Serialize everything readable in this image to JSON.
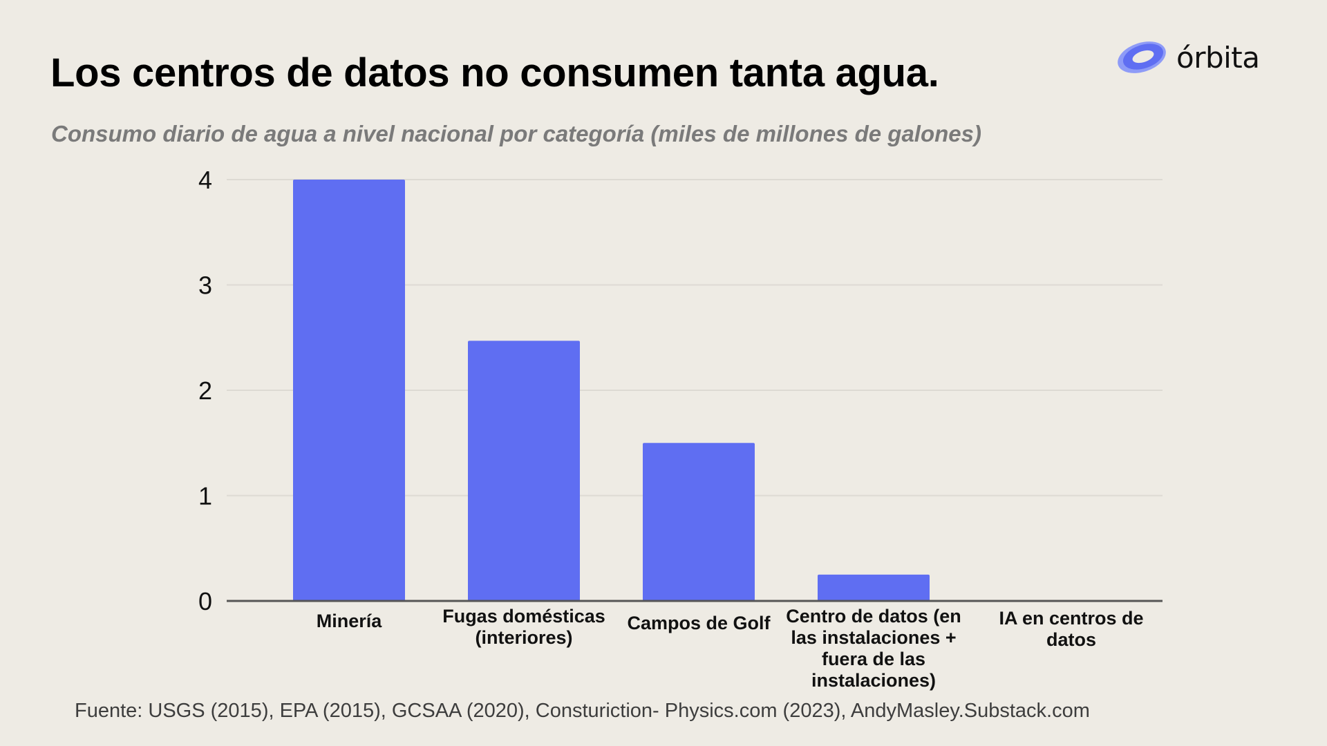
{
  "title": "Los centros de datos no consumen tanta agua.",
  "subtitle": "Consumo diario de agua a nivel nacional por categoría (miles de millones de galones)",
  "logo": {
    "text": "órbita",
    "icon": "orbit-ring-icon",
    "color": "#6170f0"
  },
  "source": "Fuente: USGS (2015), EPA (2015), GCSAA (2020), Consturiction- Physics.com (2023), AndyMasley.Substack.com",
  "colors": {
    "bar": "#5f6ef2",
    "background": "#eeebe4",
    "grid": "#dddad3",
    "axis": "#555555"
  },
  "chart_data": {
    "type": "bar",
    "title": "Consumo diario de agua a nivel nacional por categoría (miles de millones de galones)",
    "xlabel": "",
    "ylabel": "",
    "categories": [
      "Minería",
      "Fugas domésticas (interiores)",
      "Campos de Golf",
      "Centro de datos (en las instalaciones + fuera de las instalaciones)",
      "IA en centros de datos"
    ],
    "values": [
      4.0,
      2.47,
      1.5,
      0.25,
      0.0
    ],
    "ylim": [
      0,
      4
    ],
    "yticks": [
      "0",
      "1",
      "2",
      "3",
      "4"
    ],
    "grid": true
  }
}
